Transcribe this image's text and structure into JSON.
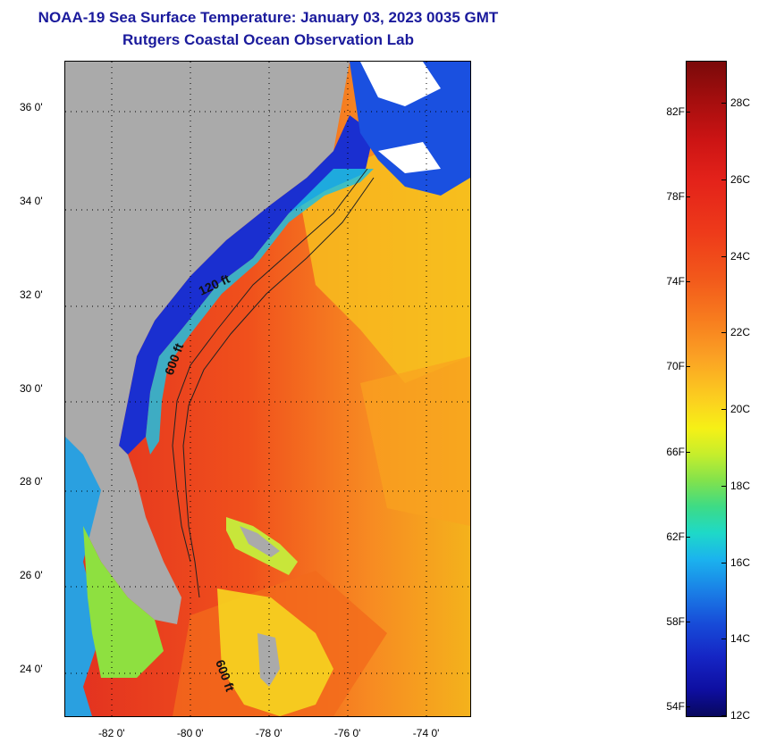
{
  "header": {
    "title": "NOAA-19 Sea Surface Temperature:  January 03, 2023 0035 GMT",
    "subtitle": "Rutgers Coastal Ocean Observation Lab"
  },
  "map": {
    "latitude_labels": [
      "36 0'",
      "34 0'",
      "32 0'",
      "30 0'",
      "28 0'",
      "26 0'",
      "24 0'"
    ],
    "latitude_values": [
      36,
      34,
      32,
      30,
      28,
      26,
      24
    ],
    "longitude_labels": [
      "-82 0'",
      "-80 0'",
      "-78 0'",
      "-76 0'",
      "-74 0'"
    ],
    "longitude_values": [
      -82,
      -80,
      -78,
      -76,
      -74
    ],
    "lat_range": [
      23,
      37
    ],
    "lon_range": [
      -83.2,
      -72.9
    ],
    "contour_labels": [
      "120 ft",
      "600 ft",
      "600 ft"
    ],
    "colors": {
      "land": "#aaaaaa",
      "cloud": "#ffffff",
      "gulf_stream": "#e0402a",
      "coastal_cold": "#1a2fd0"
    }
  },
  "colorbar": {
    "fahrenheit_labels": [
      "82F",
      "78F",
      "74F",
      "70F",
      "66F",
      "62F",
      "58F",
      "54F"
    ],
    "celsius_labels": [
      "28C",
      "26C",
      "24C",
      "22C",
      "20C",
      "18C",
      "16C",
      "14C",
      "12C"
    ]
  }
}
